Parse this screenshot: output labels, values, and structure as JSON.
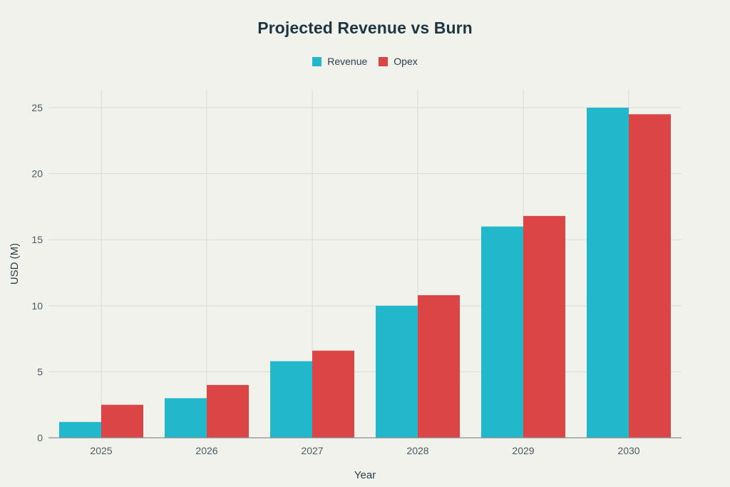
{
  "chart_data": {
    "type": "bar",
    "title": "Projected Revenue vs Burn",
    "xlabel": "Year",
    "ylabel": "USD (M)",
    "categories": [
      "2025",
      "2026",
      "2027",
      "2028",
      "2029",
      "2030"
    ],
    "series": [
      {
        "name": "Revenue",
        "color": "#22b8cc",
        "values": [
          1.2,
          3.0,
          5.8,
          10.0,
          16.0,
          25.0
        ]
      },
      {
        "name": "Opex",
        "color": "#db4546",
        "values": [
          2.5,
          4.0,
          6.6,
          10.8,
          16.8,
          24.5
        ]
      }
    ],
    "ylim": [
      0,
      25
    ],
    "yticks": [
      0,
      5,
      10,
      15,
      20,
      25
    ],
    "grid": true,
    "legend_position": "top-center"
  }
}
